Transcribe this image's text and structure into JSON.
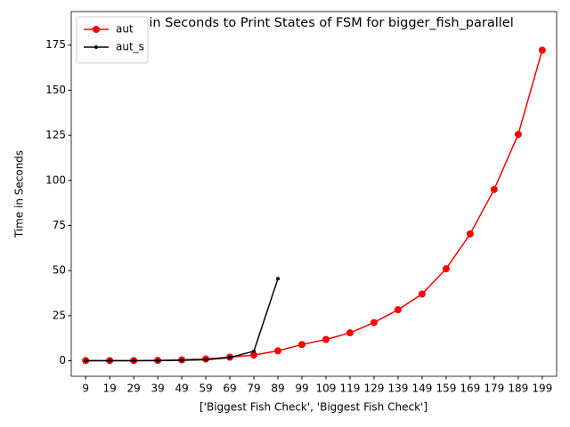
{
  "chart_data": {
    "type": "line",
    "title": "Time in Seconds to Print States of FSM for bigger_fish_parallel",
    "xlabel": "['Biggest Fish Check', 'Biggest Fish Check']",
    "ylabel": "Time in Seconds",
    "categories": [
      "9",
      "19",
      "29",
      "39",
      "49",
      "59",
      "69",
      "79",
      "89",
      "99",
      "109",
      "119",
      "129",
      "139",
      "149",
      "159",
      "169",
      "179",
      "189",
      "199"
    ],
    "series": [
      {
        "name": "aut",
        "color": "#ff0000",
        "marker": "o",
        "values": [
          0.1,
          0.1,
          0.1,
          0.2,
          0.5,
          1,
          2,
          3.2,
          5.5,
          9,
          11.8,
          15.5,
          21.2,
          28.3,
          37,
          51,
          70.3,
          95,
          125.5,
          172.2
        ]
      },
      {
        "name": "aut_s",
        "color": "#000000",
        "marker": ".",
        "values": [
          0,
          0,
          0,
          0.1,
          0.3,
          0.6,
          1.8,
          5.3,
          45.5,
          null,
          null,
          null,
          null,
          null,
          null,
          null,
          null,
          null,
          null,
          null
        ]
      }
    ],
    "ylim": [
      -8.6,
      193.6
    ],
    "yticks": [
      0,
      25,
      50,
      75,
      100,
      125,
      150,
      175
    ],
    "legend": "upper left",
    "grid": false
  }
}
